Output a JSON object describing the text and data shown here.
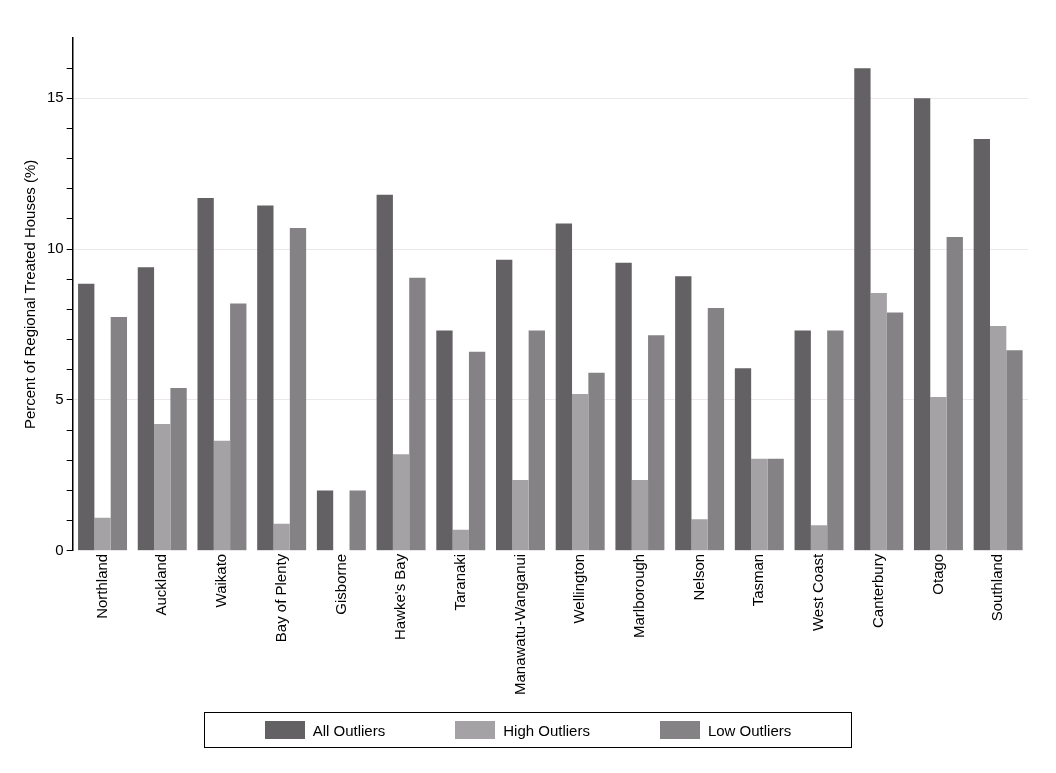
{
  "chart_data": {
    "type": "bar",
    "ylabel": "Percent of Regional Treated Houses (%)",
    "categories": [
      "Northland",
      "Auckland",
      "Waikato",
      "Bay of Plenty",
      "Gisborne",
      "Hawke's Bay",
      "Taranaki",
      "Manawatu-Wanganui",
      "Wellington",
      "Marlborough",
      "Nelson",
      "Tasman",
      "West Coast",
      "Canterbury",
      "Otago",
      "Southland"
    ],
    "series": [
      {
        "name": "All Outliers",
        "color": "#636164",
        "values": [
          8.85,
          9.4,
          11.7,
          11.45,
          2.0,
          11.8,
          7.3,
          9.65,
          10.85,
          9.55,
          9.1,
          6.05,
          7.3,
          16.0,
          15.0,
          13.65
        ]
      },
      {
        "name": "High Outliers",
        "color": "#a4a2a5",
        "values": [
          1.1,
          4.2,
          3.65,
          0.9,
          0,
          3.2,
          0.7,
          2.35,
          5.2,
          2.35,
          1.05,
          3.05,
          0.85,
          8.55,
          5.1,
          7.45
        ]
      },
      {
        "name": "Low Outliers",
        "color": "#848285",
        "values": [
          7.75,
          5.4,
          8.2,
          10.7,
          2.0,
          9.05,
          6.6,
          7.3,
          5.9,
          7.15,
          8.05,
          3.05,
          7.3,
          7.9,
          10.4,
          6.65
        ]
      }
    ],
    "ylim": [
      0,
      17
    ],
    "yticks": [
      0,
      {
        "value": 1,
        "label": null
      },
      {
        "value": 2,
        "label": null
      },
      {
        "value": 3,
        "label": null
      },
      {
        "value": 4,
        "label": null
      },
      5,
      {
        "value": 6,
        "label": null
      },
      {
        "value": 7,
        "label": null
      },
      {
        "value": 8,
        "label": null
      },
      {
        "value": 9,
        "label": null
      },
      10,
      {
        "value": 11,
        "label": null
      },
      {
        "value": 12,
        "label": null
      },
      {
        "value": 13,
        "label": null
      },
      {
        "value": 14,
        "label": null
      },
      15,
      {
        "value": 16,
        "label": null
      }
    ],
    "grid": "y",
    "legend": "bottom"
  }
}
